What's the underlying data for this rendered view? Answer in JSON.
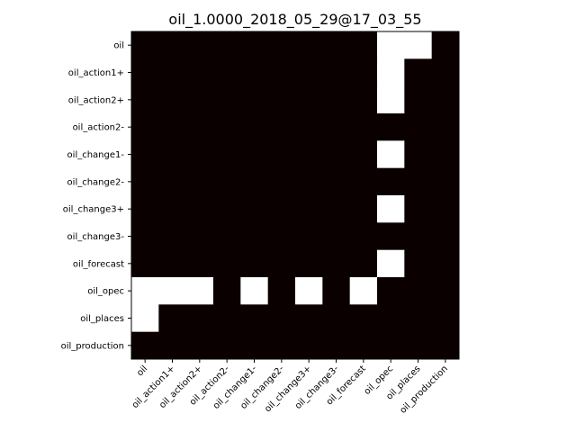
{
  "chart_data": {
    "type": "heatmap",
    "title": "oil_1.0000_2018_05_29@17_03_55",
    "xlabel": "",
    "ylabel": "",
    "rows": [
      "oil",
      "oil_action1+",
      "oil_action2+",
      "oil_action2-",
      "oil_change1-",
      "oil_change2-",
      "oil_change3+",
      "oil_change3-",
      "oil_forecast",
      "oil_opec",
      "oil_places",
      "oil_production"
    ],
    "columns": [
      "oil",
      "oil_action1+",
      "oil_action2+",
      "oil_action2-",
      "oil_change1-",
      "oil_change2-",
      "oil_change3+",
      "oil_change3-",
      "oil_forecast",
      "oil_opec",
      "oil_places",
      "oil_production"
    ],
    "values": [
      [
        0,
        0,
        0,
        0,
        0,
        0,
        0,
        0,
        0,
        1,
        1,
        0
      ],
      [
        0,
        0,
        0,
        0,
        0,
        0,
        0,
        0,
        0,
        1,
        0,
        0
      ],
      [
        0,
        0,
        0,
        0,
        0,
        0,
        0,
        0,
        0,
        1,
        0,
        0
      ],
      [
        0,
        0,
        0,
        0,
        0,
        0,
        0,
        0,
        0,
        0,
        0,
        0
      ],
      [
        0,
        0,
        0,
        0,
        0,
        0,
        0,
        0,
        0,
        1,
        0,
        0
      ],
      [
        0,
        0,
        0,
        0,
        0,
        0,
        0,
        0,
        0,
        0,
        0,
        0
      ],
      [
        0,
        0,
        0,
        0,
        0,
        0,
        0,
        0,
        0,
        1,
        0,
        0
      ],
      [
        0,
        0,
        0,
        0,
        0,
        0,
        0,
        0,
        0,
        0,
        0,
        0
      ],
      [
        0,
        0,
        0,
        0,
        0,
        0,
        0,
        0,
        0,
        1,
        0,
        0
      ],
      [
        1,
        1,
        1,
        0,
        1,
        0,
        1,
        0,
        1,
        0,
        0,
        0
      ],
      [
        1,
        0,
        0,
        0,
        0,
        0,
        0,
        0,
        0,
        0,
        0,
        0
      ],
      [
        0,
        0,
        0,
        0,
        0,
        0,
        0,
        0,
        0,
        0,
        0,
        0
      ]
    ],
    "colors": {
      "low": "#0a0000",
      "high": "#ffffff"
    }
  }
}
